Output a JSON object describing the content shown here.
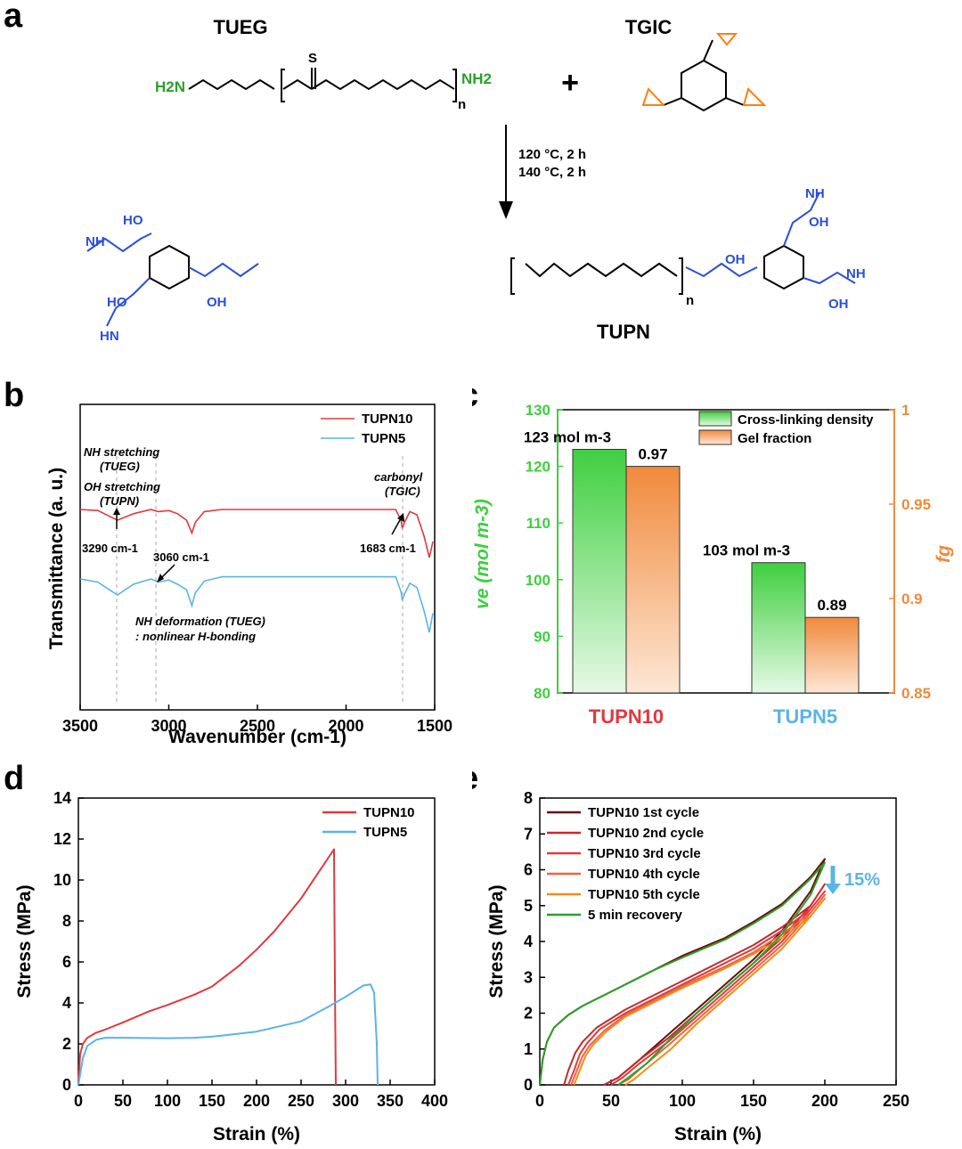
{
  "panel_labels": {
    "a": "a",
    "b": "b",
    "c": "c",
    "d": "d",
    "e": "e"
  },
  "scheme": {
    "reactant1_name": "TUEG",
    "reactant2_name": "TGIC",
    "plus": "+",
    "condition1": "120 °C, 2 h",
    "condition2": "140 °C, 2 h",
    "product_name": "TUPN",
    "labels": {
      "nh2": "NH2",
      "h2n": "H2N",
      "n": "n",
      "oh": "OH",
      "ho": "HO",
      "nh": "NH",
      "hn": "HN",
      "s": "S",
      "o": "O",
      "n_atom": "N",
      "h": "H"
    },
    "colors": {
      "amine": "#2ca02c",
      "epoxide": "#ff7f0e",
      "new_bond": "#2b4fd8"
    }
  },
  "chart_data": [
    {
      "type": "line",
      "panel": "b",
      "xlabel": "Wavenumber (cm-1)",
      "ylabel": "Transmittance (a. u.)",
      "xlim": [
        3500,
        1500
      ],
      "x_ticks": [
        "3500",
        "3000",
        "2500",
        "2000",
        "1500"
      ],
      "legend_position": "top-right",
      "series": [
        {
          "name": "TUPN10",
          "color": "#e0393e",
          "x": [
            3500,
            3400,
            3290,
            3200,
            3100,
            3060,
            3000,
            2950,
            2900,
            2870,
            2850,
            2800,
            2700,
            2500,
            2200,
            2000,
            1800,
            1720,
            1690,
            1683,
            1670,
            1640,
            1600,
            1560,
            1530,
            1510
          ],
          "y": [
            0.0,
            0.01,
            0.1,
            0.04,
            0.0,
            0.02,
            0.01,
            0.04,
            0.1,
            0.22,
            0.12,
            0.02,
            0.0,
            0.0,
            0.0,
            0.0,
            0.0,
            0.0,
            0.1,
            0.18,
            0.12,
            0.02,
            0.05,
            0.25,
            0.45,
            0.3
          ]
        },
        {
          "name": "TUPN5",
          "color": "#5ab4e5",
          "x": [
            3500,
            3400,
            3290,
            3200,
            3100,
            3060,
            3000,
            2950,
            2900,
            2870,
            2850,
            2800,
            2700,
            2500,
            2200,
            2000,
            1800,
            1720,
            1690,
            1683,
            1670,
            1640,
            1600,
            1560,
            1530,
            1510
          ],
          "y": [
            0.0,
            0.03,
            0.15,
            0.05,
            0.0,
            0.03,
            0.01,
            0.05,
            0.1,
            0.25,
            0.13,
            0.02,
            -0.02,
            -0.02,
            -0.02,
            -0.02,
            -0.02,
            -0.02,
            0.12,
            0.2,
            0.14,
            0.04,
            0.08,
            0.3,
            0.5,
            0.32
          ]
        }
      ],
      "annotations": {
        "nh_stretch_1": "NH stretching",
        "nh_stretch_2": "(TUEG)",
        "oh_stretch_1": "OH stretching",
        "oh_stretch_2": "(TUPN)",
        "peak_3290": "3290 cm-1",
        "peak_3060": "3060 cm-1",
        "carbonyl_1": "carbonyl",
        "carbonyl_2": "(TGIC)",
        "peak_1683": "1683 cm-1",
        "nh_deform_1": "NH deformation (TUEG)",
        "nh_deform_2": ": nonlinear H-bonding"
      }
    },
    {
      "type": "bar",
      "panel": "c",
      "categories": [
        "TUPN10",
        "TUPN5"
      ],
      "category_colors": [
        "#e0393e",
        "#5ab4e5"
      ],
      "ylabel_left": "ve (mol m-3)",
      "ylabel_right": "fg",
      "ylim_left": [
        80,
        130
      ],
      "ylim_right": [
        0.85,
        1.0
      ],
      "left_ticks": [
        "80",
        "90",
        "100",
        "110",
        "120",
        "130"
      ],
      "right_ticks": [
        "0.85",
        "0.9",
        "0.95",
        "1"
      ],
      "legend_position": "top-right",
      "series": [
        {
          "name": "Cross-linking density",
          "axis": "left",
          "color": "#3fcf3f",
          "values": [
            123,
            103
          ],
          "labels": [
            "123 mol m-3",
            "103 mol m-3"
          ]
        },
        {
          "name": "Gel fraction",
          "axis": "right",
          "color": "#f08a3c",
          "values": [
            0.97,
            0.89
          ],
          "labels": [
            "0.97",
            "0.89"
          ]
        }
      ]
    },
    {
      "type": "line",
      "panel": "d",
      "xlabel": "Strain (%)",
      "ylabel": "Stress (MPa)",
      "xlim": [
        0,
        400
      ],
      "ylim": [
        0,
        14
      ],
      "x_ticks": [
        "0",
        "50",
        "100",
        "150",
        "200",
        "250",
        "300",
        "350",
        "400"
      ],
      "y_ticks": [
        "0",
        "2",
        "4",
        "6",
        "8",
        "10",
        "12",
        "14"
      ],
      "legend_position": "top-right",
      "series": [
        {
          "name": "TUPN10",
          "color": "#e0393e",
          "x": [
            0,
            2,
            5,
            10,
            20,
            30,
            50,
            80,
            100,
            130,
            150,
            180,
            200,
            220,
            250,
            270,
            287,
            288,
            289
          ],
          "y": [
            0,
            1.5,
            2.0,
            2.3,
            2.55,
            2.7,
            3.05,
            3.6,
            3.9,
            4.4,
            4.8,
            5.8,
            6.6,
            7.5,
            9.1,
            10.4,
            11.5,
            5.0,
            0
          ]
        },
        {
          "name": "TUPN5",
          "color": "#5ab4e5",
          "x": [
            0,
            2,
            5,
            10,
            20,
            30,
            50,
            100,
            130,
            150,
            200,
            250,
            280,
            300,
            320,
            328,
            332,
            335,
            336
          ],
          "y": [
            0,
            0.5,
            1.3,
            1.9,
            2.2,
            2.3,
            2.3,
            2.28,
            2.3,
            2.35,
            2.6,
            3.1,
            3.8,
            4.3,
            4.85,
            4.9,
            4.5,
            2.0,
            0
          ]
        }
      ]
    },
    {
      "type": "line",
      "panel": "e",
      "xlabel": "Strain (%)",
      "ylabel": "Stress (MPa)",
      "xlim": [
        0,
        250
      ],
      "ylim": [
        0,
        8
      ],
      "x_ticks": [
        "0",
        "50",
        "100",
        "150",
        "200",
        "250"
      ],
      "y_ticks": [
        "0",
        "1",
        "2",
        "3",
        "4",
        "5",
        "6",
        "7",
        "8"
      ],
      "legend_position": "top-left",
      "arrow_label": "15%",
      "arrow_color": "#5ab4e5",
      "series": [
        {
          "name": "TUPN10 1st cycle",
          "color": "#6b0f0f",
          "x": [
            0,
            2,
            5,
            10,
            20,
            30,
            50,
            80,
            100,
            130,
            150,
            170,
            190,
            200,
            190,
            170,
            150,
            130,
            110,
            90,
            70,
            55,
            45
          ],
          "y": [
            0,
            0.7,
            1.2,
            1.6,
            1.95,
            2.2,
            2.6,
            3.2,
            3.6,
            4.1,
            4.55,
            5.05,
            5.8,
            6.3,
            5.4,
            4.3,
            3.5,
            2.8,
            2.1,
            1.4,
            0.7,
            0.2,
            0
          ]
        },
        {
          "name": "TUPN10 2nd cycle",
          "color": "#c42a2a",
          "x": [
            17,
            20,
            25,
            30,
            40,
            60,
            80,
            100,
            130,
            150,
            170,
            190,
            200,
            190,
            170,
            150,
            130,
            110,
            90,
            70,
            55,
            45
          ],
          "y": [
            0,
            0.4,
            0.9,
            1.2,
            1.6,
            2.1,
            2.5,
            2.9,
            3.5,
            3.9,
            4.4,
            5.0,
            5.6,
            5.0,
            4.1,
            3.4,
            2.7,
            2.0,
            1.3,
            0.7,
            0.2,
            0
          ]
        },
        {
          "name": "TUPN10 3rd cycle",
          "color": "#e0393e",
          "x": [
            20,
            24,
            28,
            33,
            42,
            60,
            80,
            100,
            130,
            150,
            170,
            190,
            200,
            190,
            170,
            150,
            130,
            110,
            90,
            70,
            58,
            50
          ],
          "y": [
            0,
            0.4,
            0.85,
            1.15,
            1.55,
            2.0,
            2.4,
            2.8,
            3.4,
            3.8,
            4.3,
            4.9,
            5.4,
            4.9,
            4.0,
            3.3,
            2.6,
            1.9,
            1.2,
            0.6,
            0.2,
            0
          ]
        },
        {
          "name": "TUPN10 4th cycle",
          "color": "#f0643c",
          "x": [
            22,
            26,
            30,
            35,
            45,
            60,
            80,
            100,
            130,
            150,
            170,
            190,
            200,
            190,
            170,
            150,
            130,
            110,
            90,
            72,
            62,
            55
          ],
          "y": [
            0,
            0.4,
            0.8,
            1.1,
            1.5,
            1.95,
            2.35,
            2.75,
            3.3,
            3.7,
            4.2,
            4.8,
            5.3,
            4.8,
            3.9,
            3.2,
            2.5,
            1.8,
            1.1,
            0.5,
            0.15,
            0
          ]
        },
        {
          "name": "TUPN10 5th cycle",
          "color": "#f08c1c",
          "x": [
            24,
            28,
            32,
            37,
            47,
            60,
            80,
            100,
            130,
            150,
            170,
            190,
            200,
            190,
            170,
            150,
            130,
            110,
            92,
            75,
            66,
            60
          ],
          "y": [
            0,
            0.4,
            0.8,
            1.1,
            1.5,
            1.9,
            2.3,
            2.7,
            3.25,
            3.65,
            4.1,
            4.7,
            5.2,
            4.7,
            3.8,
            3.1,
            2.4,
            1.7,
            1.0,
            0.45,
            0.15,
            0
          ]
        },
        {
          "name": "5 min recovery",
          "color": "#2ca02c",
          "x": [
            0,
            2,
            5,
            10,
            20,
            30,
            50,
            80,
            100,
            130,
            150,
            170,
            190,
            200,
            190,
            170,
            150,
            130,
            110,
            92,
            75,
            62,
            55
          ],
          "y": [
            0,
            0.7,
            1.2,
            1.6,
            1.95,
            2.2,
            2.6,
            3.2,
            3.55,
            4.05,
            4.5,
            5.0,
            5.75,
            6.2,
            5.3,
            4.2,
            3.4,
            2.7,
            2.0,
            1.3,
            0.6,
            0.2,
            0
          ]
        }
      ]
    }
  ]
}
